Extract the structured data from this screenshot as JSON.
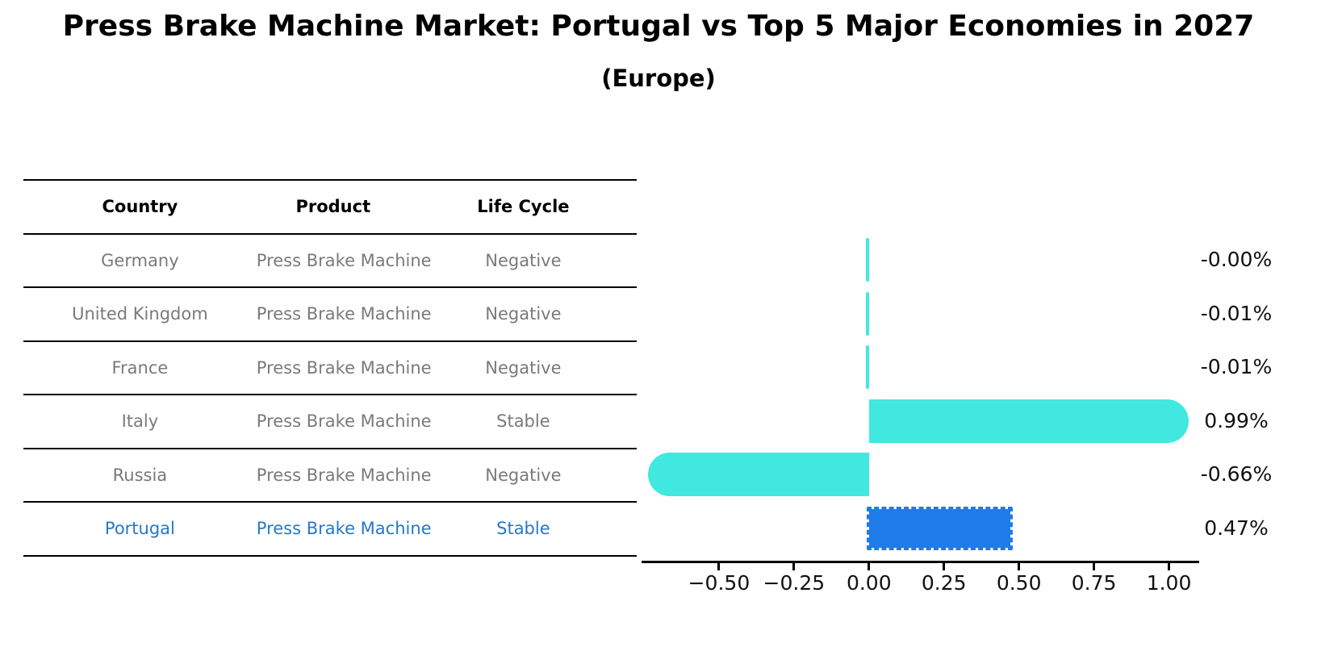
{
  "title": "Press Brake Machine Market: Portugal vs Top 5 Major Economies in 2027",
  "subtitle": "(Europe)",
  "table": {
    "headers": [
      "Country",
      "Product",
      "Life Cycle"
    ],
    "rows": [
      {
        "country": "Germany",
        "product": "Press Brake Machine",
        "life_cycle": "Negative",
        "highlight": false
      },
      {
        "country": "United Kingdom",
        "product": "Press Brake Machine",
        "life_cycle": "Negative",
        "highlight": false
      },
      {
        "country": "France",
        "product": "Press Brake Machine",
        "life_cycle": "Negative",
        "highlight": false
      },
      {
        "country": "Italy",
        "product": "Press Brake Machine",
        "life_cycle": "Stable",
        "highlight": false
      },
      {
        "country": "Russia",
        "product": "Press Brake Machine",
        "life_cycle": "Negative",
        "highlight": false
      },
      {
        "country": "Portugal",
        "product": "Press Brake Machine",
        "life_cycle": "Stable",
        "highlight": true
      }
    ]
  },
  "chart_data": {
    "type": "bar",
    "orientation": "horizontal",
    "title": "Press Brake Machine Market: Portugal vs Top 5 Major Economies in 2027 (Europe)",
    "categories": [
      "Germany",
      "United Kingdom",
      "France",
      "Italy",
      "Russia",
      "Portugal"
    ],
    "values": [
      -0.001,
      -0.01,
      -0.01,
      0.99,
      -0.66,
      0.47
    ],
    "value_labels": [
      "-0.00%",
      "-0.01%",
      "-0.01%",
      "0.99%",
      "-0.66%",
      "0.47%"
    ],
    "highlight_index": 5,
    "xlim": [
      -0.75,
      1.09
    ],
    "xticks": [
      -0.5,
      -0.25,
      0,
      0.25,
      0.5,
      0.75,
      1.0
    ],
    "xtick_labels": [
      "−0.50",
      "−0.25",
      "0.00",
      "0.25",
      "0.50",
      "0.75",
      "1.00"
    ],
    "grid": false,
    "legend": false,
    "colors": {
      "bar": "#40e8e0",
      "highlight_bar": "#1e7ce8",
      "highlight_text": "#2878c8",
      "row_text": "#7a7a7a",
      "axis_text": "#111111"
    }
  }
}
